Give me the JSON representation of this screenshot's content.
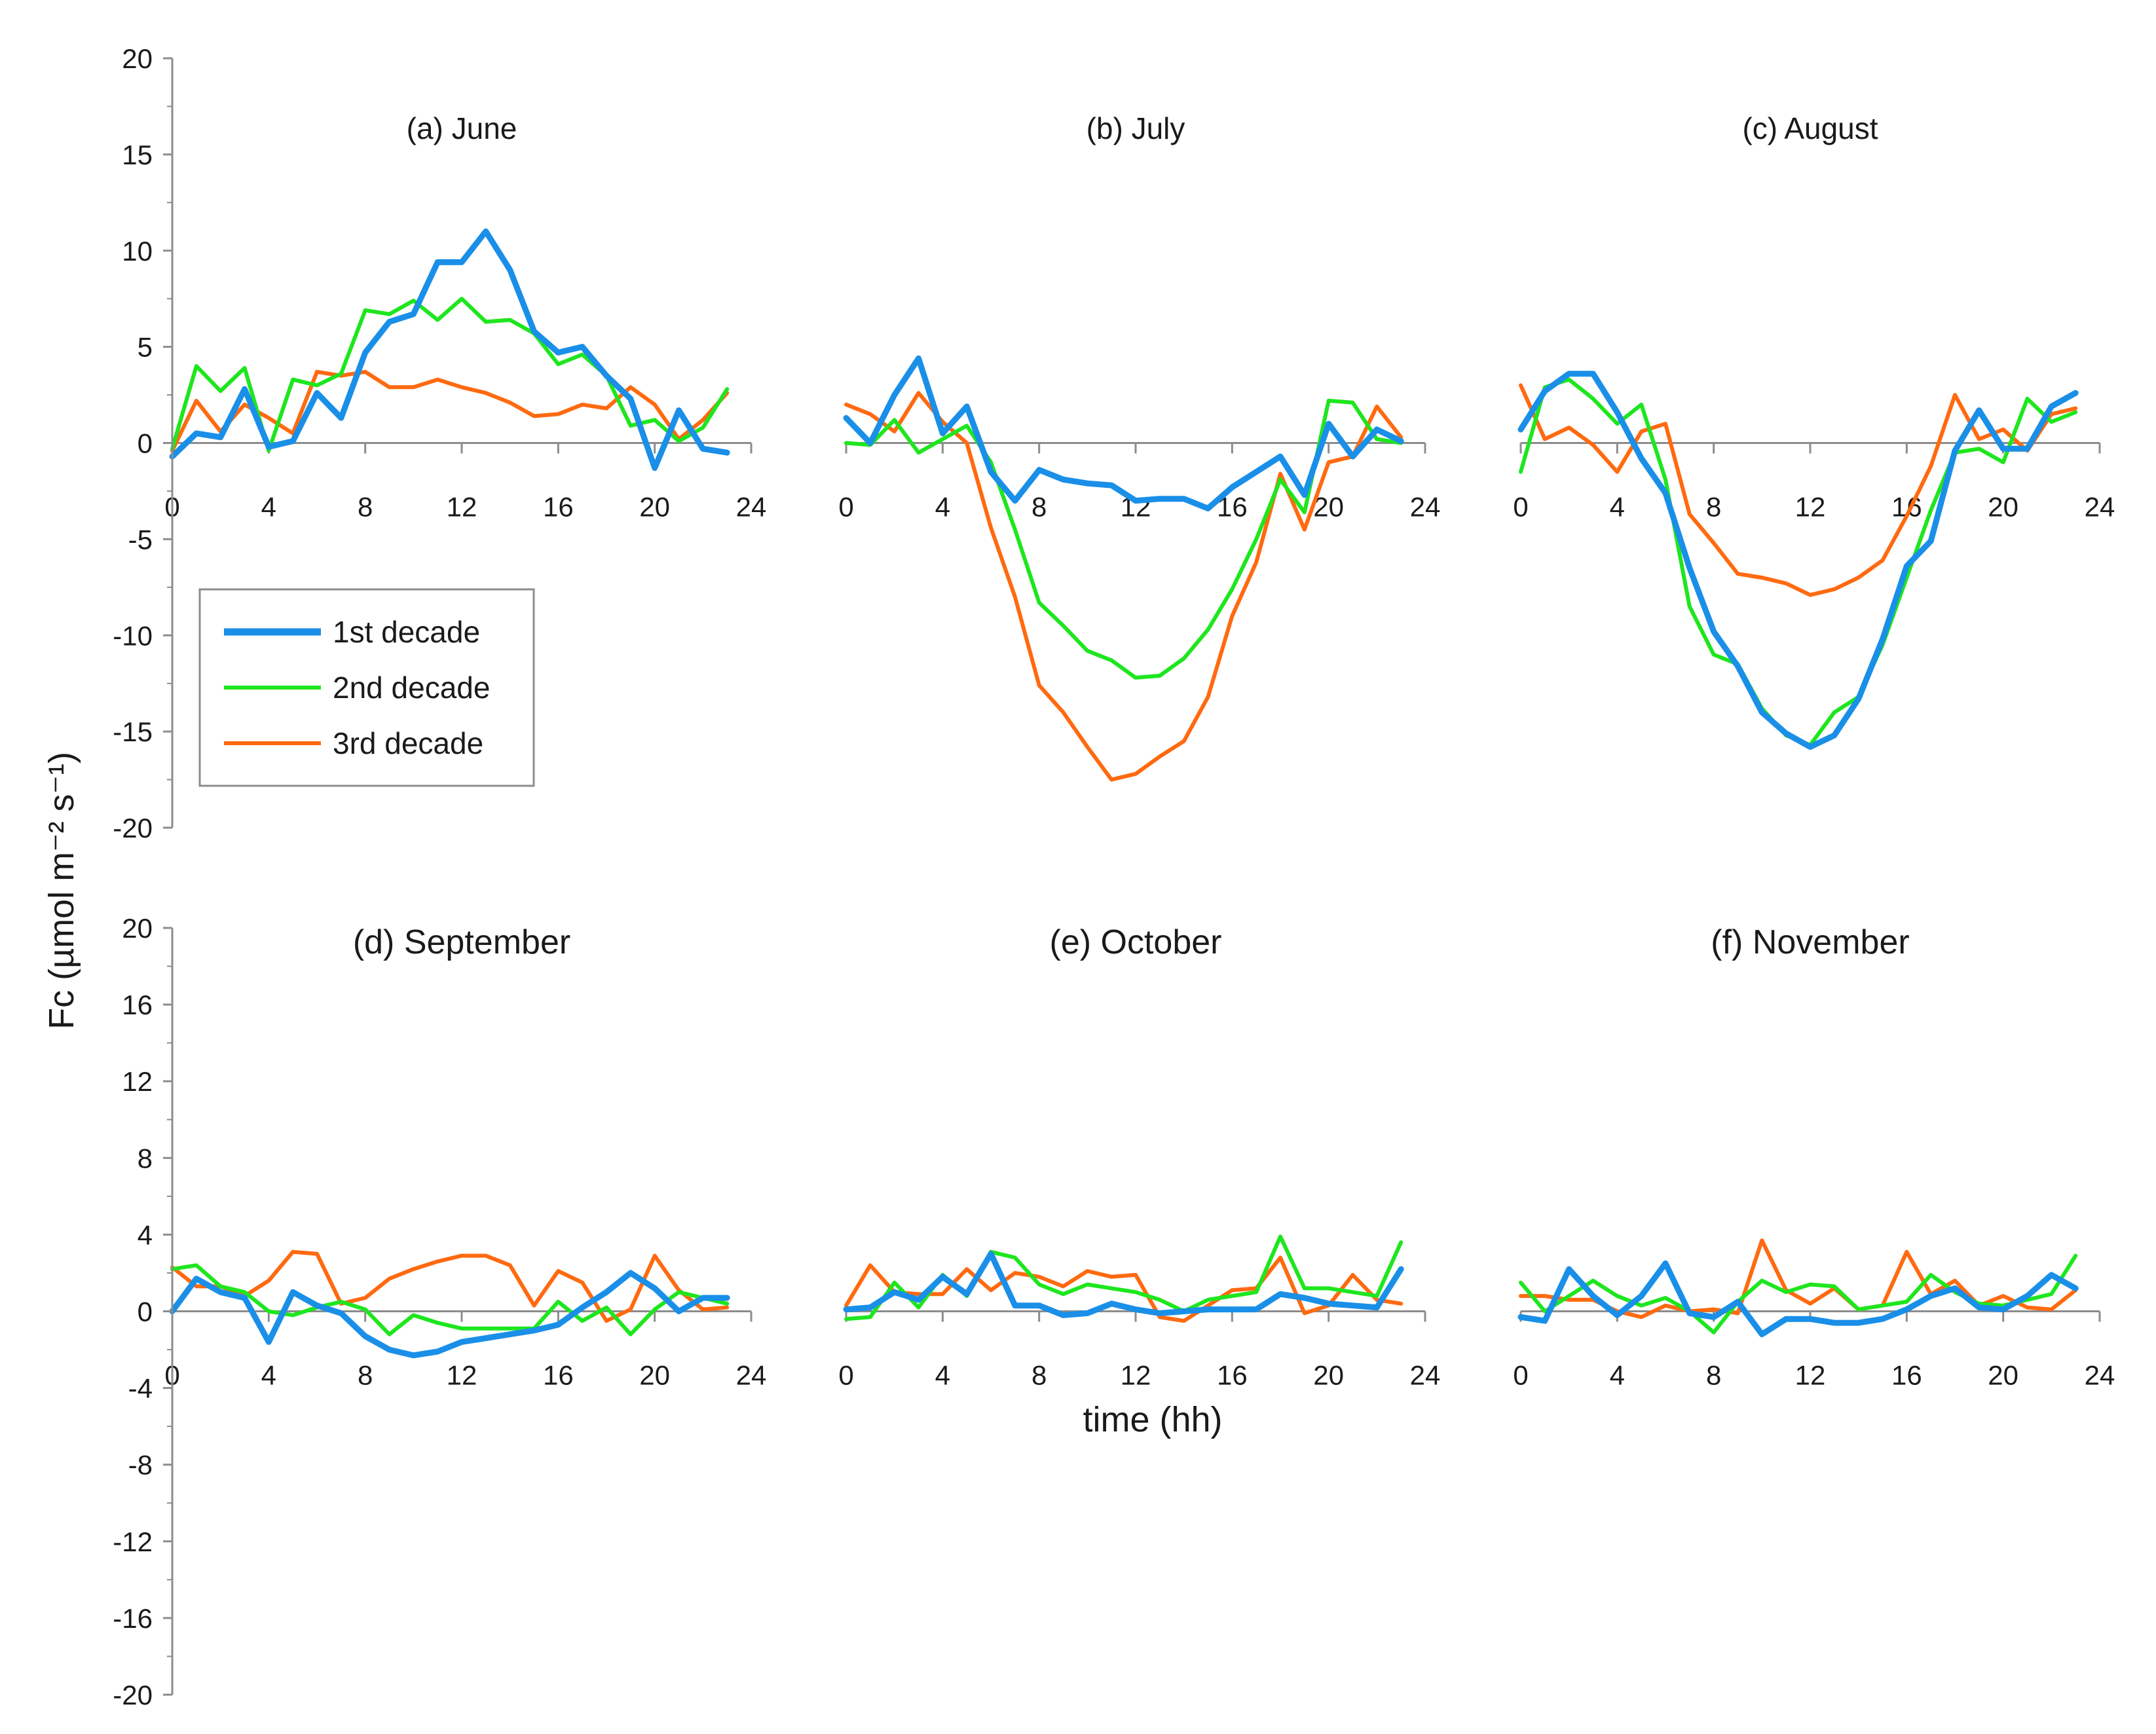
{
  "chart_data": {
    "type": "line",
    "ylabel": "Fc (µmol m⁻² s⁻¹)",
    "xlabel": "time (hh)",
    "x": [
      0,
      1,
      2,
      3,
      4,
      5,
      6,
      7,
      8,
      9,
      10,
      11,
      12,
      13,
      14,
      15,
      16,
      17,
      18,
      19,
      20,
      21,
      22,
      23
    ],
    "xticks": [
      0,
      4,
      8,
      12,
      16,
      20,
      24
    ],
    "xlim": [
      0,
      24
    ],
    "legend": {
      "placement": "left-middle",
      "entries": [
        "1st decade",
        "2nd decade",
        "3rd decade"
      ]
    },
    "colors": {
      "1st decade": "#1a8fe8",
      "2nd decade": "#1ee61e",
      "3rd decade": "#ff6a10",
      "axis": "#8c8c8c"
    },
    "rows": [
      {
        "ylim": [
          -20,
          20
        ],
        "yticks": [
          20,
          15,
          10,
          5,
          0,
          -5,
          -10,
          -15,
          -20
        ],
        "panels": [
          {
            "title": "(a) June",
            "series": [
              {
                "name": "1st decade",
                "values": [
                  -0.7,
                  0.5,
                  0.3,
                  2.8,
                  -0.2,
                  0.1,
                  2.6,
                  1.3,
                  4.7,
                  6.3,
                  6.7,
                  9.4,
                  9.4,
                  11.0,
                  9.0,
                  5.8,
                  4.7,
                  5.0,
                  3.5,
                  2.3,
                  -1.3,
                  1.7,
                  -0.3,
                  -0.5
                ]
              },
              {
                "name": "2nd decade",
                "values": [
                  -0.3,
                  4.0,
                  2.7,
                  3.9,
                  -0.4,
                  3.3,
                  3.0,
                  3.6,
                  6.9,
                  6.7,
                  7.4,
                  6.4,
                  7.5,
                  6.3,
                  6.4,
                  5.7,
                  4.1,
                  4.6,
                  3.5,
                  0.9,
                  1.2,
                  0.1,
                  0.8,
                  2.8
                ]
              },
              {
                "name": "3rd decade",
                "values": [
                  -0.4,
                  2.2,
                  0.6,
                  2.0,
                  1.3,
                  0.5,
                  3.7,
                  3.5,
                  3.7,
                  2.9,
                  2.9,
                  3.3,
                  2.9,
                  2.6,
                  2.1,
                  1.4,
                  1.5,
                  2.0,
                  1.8,
                  2.9,
                  2.0,
                  0.2,
                  1.2,
                  2.6
                ]
              }
            ]
          },
          {
            "title": "(b) July",
            "series": [
              {
                "name": "1st decade",
                "values": [
                  1.3,
                  0.0,
                  2.5,
                  4.4,
                  0.5,
                  1.9,
                  -1.5,
                  -3.0,
                  -1.4,
                  -1.9,
                  -2.1,
                  -2.2,
                  -3.0,
                  -2.9,
                  -2.9,
                  -3.4,
                  -2.3,
                  -1.5,
                  -0.7,
                  -2.7,
                  1.0,
                  -0.7,
                  0.7,
                  0.1
                ]
              },
              {
                "name": "2nd decade",
                "values": [
                  0.0,
                  -0.1,
                  1.2,
                  -0.5,
                  0.2,
                  0.9,
                  -1.0,
                  -4.5,
                  -8.3,
                  -9.5,
                  -10.8,
                  -11.3,
                  -12.2,
                  -12.1,
                  -11.2,
                  -9.7,
                  -7.6,
                  -5.0,
                  -1.9,
                  -3.6,
                  2.2,
                  2.1,
                  0.2,
                  0.0
                ]
              },
              {
                "name": "3rd decade",
                "values": [
                  2.0,
                  1.5,
                  0.6,
                  2.6,
                  1.1,
                  0.0,
                  -4.4,
                  -8.0,
                  -12.6,
                  -14.0,
                  -15.8,
                  -17.5,
                  -17.2,
                  -16.3,
                  -15.5,
                  -13.2,
                  -9.0,
                  -6.2,
                  -1.6,
                  -4.5,
                  -1.0,
                  -0.7,
                  1.9,
                  0.3
                ]
              }
            ]
          },
          {
            "title": "(c) August",
            "series": [
              {
                "name": "1st decade",
                "values": [
                  0.7,
                  2.7,
                  3.6,
                  3.6,
                  1.6,
                  -0.8,
                  -2.6,
                  -6.5,
                  -9.8,
                  -11.6,
                  -14.0,
                  -15.1,
                  -15.8,
                  -15.2,
                  -13.3,
                  -10.2,
                  -6.4,
                  -5.1,
                  -0.4,
                  1.7,
                  -0.3,
                  -0.3,
                  1.9,
                  2.6
                ]
              },
              {
                "name": "2nd decade",
                "values": [
                  -1.5,
                  2.9,
                  3.3,
                  2.3,
                  1.0,
                  2.0,
                  -1.9,
                  -8.5,
                  -11.0,
                  -11.5,
                  -13.8,
                  -15.2,
                  -15.7,
                  -14.0,
                  -13.2,
                  -10.5,
                  -7.0,
                  -3.5,
                  -0.5,
                  -0.3,
                  -1.0,
                  2.3,
                  1.1,
                  1.6
                ]
              },
              {
                "name": "3rd decade",
                "values": [
                  3.0,
                  0.2,
                  0.8,
                  -0.1,
                  -1.5,
                  0.6,
                  1.0,
                  -3.7,
                  -5.2,
                  -6.8,
                  -7.0,
                  -7.3,
                  -7.9,
                  -7.6,
                  -7.0,
                  -6.1,
                  -3.8,
                  -1.2,
                  2.5,
                  0.2,
                  0.7,
                  -0.4,
                  1.5,
                  1.8
                ]
              }
            ]
          }
        ]
      },
      {
        "ylim": [
          -20,
          20
        ],
        "yticks": [
          20,
          16,
          12,
          8,
          4,
          0,
          -4,
          -8,
          -12,
          -16,
          -20
        ],
        "panels": [
          {
            "title": "(d) September",
            "series": [
              {
                "name": "1st decade",
                "values": [
                  0.0,
                  1.7,
                  1.0,
                  0.7,
                  -1.6,
                  1.0,
                  0.3,
                  -0.1,
                  -1.3,
                  -2.0,
                  -2.3,
                  -2.1,
                  -1.6,
                  -1.4,
                  -1.2,
                  -1.0,
                  -0.7,
                  0.2,
                  1.0,
                  2.0,
                  1.2,
                  0.0,
                  0.7,
                  0.7
                ]
              },
              {
                "name": "2nd decade",
                "values": [
                  2.2,
                  2.4,
                  1.3,
                  1.0,
                  0.0,
                  -0.2,
                  0.2,
                  0.5,
                  0.1,
                  -1.2,
                  -0.2,
                  -0.6,
                  -0.9,
                  -0.9,
                  -0.9,
                  -0.9,
                  0.5,
                  -0.5,
                  0.2,
                  -1.2,
                  0.1,
                  1.0,
                  0.7,
                  0.4
                ]
              },
              {
                "name": "3rd decade",
                "values": [
                  2.3,
                  1.3,
                  1.3,
                  0.8,
                  1.6,
                  3.1,
                  3.0,
                  0.4,
                  0.7,
                  1.7,
                  2.2,
                  2.6,
                  2.9,
                  2.9,
                  2.4,
                  0.3,
                  2.1,
                  1.5,
                  -0.5,
                  0.1,
                  2.9,
                  1.1,
                  0.1,
                  0.2
                ]
              }
            ]
          },
          {
            "title": "(e) October",
            "series": [
              {
                "name": "1st decade",
                "values": [
                  0.1,
                  0.2,
                  1.0,
                  0.6,
                  1.8,
                  0.9,
                  3.0,
                  0.3,
                  0.3,
                  -0.2,
                  -0.1,
                  0.4,
                  0.1,
                  -0.1,
                  0.0,
                  0.1,
                  0.1,
                  0.1,
                  0.9,
                  0.7,
                  0.4,
                  0.3,
                  0.2,
                  2.2
                ]
              },
              {
                "name": "2nd decade",
                "values": [
                  -0.4,
                  -0.3,
                  1.5,
                  0.2,
                  1.9,
                  0.8,
                  3.1,
                  2.8,
                  1.4,
                  0.9,
                  1.4,
                  1.2,
                  1.0,
                  0.6,
                  0.0,
                  0.6,
                  0.8,
                  1.0,
                  3.9,
                  1.2,
                  1.2,
                  1.0,
                  0.8,
                  3.6
                ]
              },
              {
                "name": "3rd decade",
                "values": [
                  0.3,
                  2.4,
                  1.0,
                  0.9,
                  0.9,
                  2.2,
                  1.1,
                  2.0,
                  1.8,
                  1.3,
                  2.1,
                  1.8,
                  1.9,
                  -0.3,
                  -0.5,
                  0.3,
                  1.1,
                  1.2,
                  2.8,
                  -0.1,
                  0.3,
                  1.9,
                  0.6,
                  0.4
                ]
              }
            ]
          },
          {
            "title": "(f) November",
            "series": [
              {
                "name": "1st decade",
                "values": [
                  -0.3,
                  -0.5,
                  2.2,
                  0.8,
                  -0.2,
                  0.8,
                  2.5,
                  -0.1,
                  -0.3,
                  0.5,
                  -1.2,
                  -0.4,
                  -0.4,
                  -0.6,
                  -0.6,
                  -0.4,
                  0.1,
                  0.8,
                  1.2,
                  0.2,
                  0.1,
                  0.8,
                  1.9,
                  1.2
                ]
              },
              {
                "name": "2nd decade",
                "values": [
                  1.5,
                  0.0,
                  0.8,
                  1.6,
                  0.8,
                  0.3,
                  0.7,
                  0.0,
                  -1.1,
                  0.5,
                  1.6,
                  1.0,
                  1.4,
                  1.3,
                  0.1,
                  0.3,
                  0.5,
                  1.9,
                  1.0,
                  0.4,
                  0.3,
                  0.6,
                  0.9,
                  2.9
                ]
              },
              {
                "name": "3rd decade",
                "values": [
                  0.8,
                  0.8,
                  0.6,
                  0.6,
                  0.0,
                  -0.3,
                  0.3,
                  0.0,
                  0.1,
                  -0.1,
                  3.7,
                  1.1,
                  0.4,
                  1.2,
                  0.1,
                  0.3,
                  3.1,
                  0.9,
                  1.6,
                  0.3,
                  0.8,
                  0.2,
                  0.1,
                  1.1
                ]
              }
            ]
          }
        ]
      }
    ]
  }
}
